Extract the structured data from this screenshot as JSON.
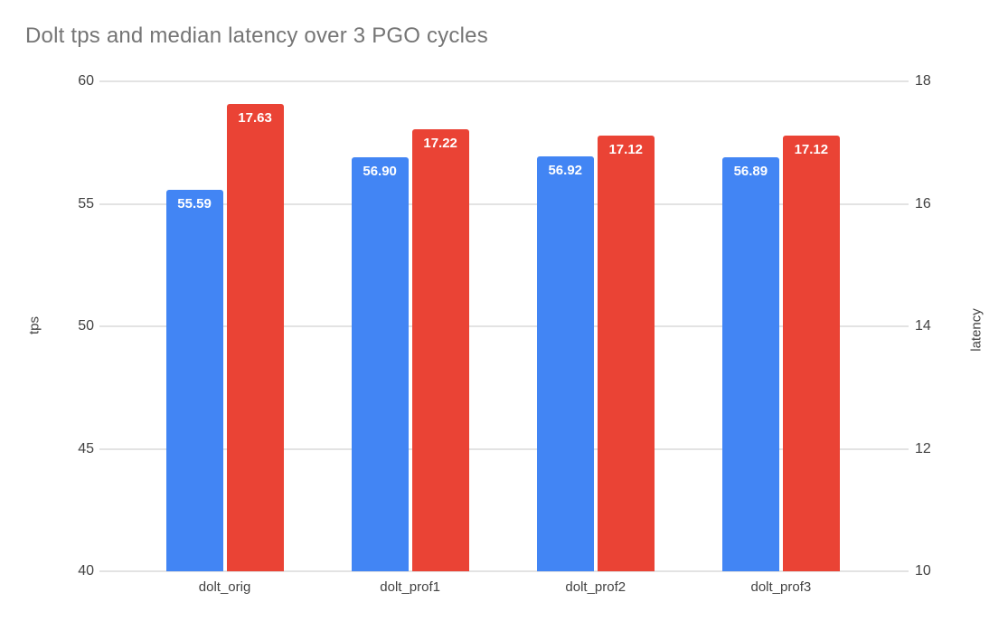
{
  "title": "Dolt tps and median latency over 3 PGO cycles",
  "chart_data": {
    "type": "bar",
    "title": "Dolt tps and median latency over 3 PGO cycles",
    "categories": [
      "dolt_orig",
      "dolt_prof1",
      "dolt_prof2",
      "dolt_prof3"
    ],
    "series": [
      {
        "name": "tps",
        "axis": "left",
        "color": "#4285F4",
        "values": [
          55.59,
          56.9,
          56.92,
          56.89
        ],
        "value_labels": [
          "55.59",
          "56.90",
          "56.92",
          "56.89"
        ]
      },
      {
        "name": "latency",
        "axis": "right",
        "color": "#EA4335",
        "values": [
          17.63,
          17.22,
          17.12,
          17.12
        ],
        "value_labels": [
          "17.63",
          "17.22",
          "17.12",
          "17.12"
        ]
      }
    ],
    "left_axis": {
      "label": "tps",
      "min": 40,
      "max": 60,
      "ticks": [
        60,
        55,
        50,
        45,
        40
      ],
      "tick_labels": [
        "60",
        "55",
        "50",
        "45",
        "40"
      ]
    },
    "right_axis": {
      "label": "latency",
      "min": 10,
      "max": 18,
      "ticks": [
        18,
        16,
        14,
        12,
        10
      ],
      "tick_labels": [
        "18",
        "16",
        "14",
        "12",
        "10"
      ]
    },
    "grid": true,
    "legend": "none",
    "value_labels_shown": true
  },
  "colors": {
    "title_text": "#757575",
    "axis_text": "#424242",
    "gridline": "#e3e3e3",
    "background": "#ffffff",
    "bar_tps": "#4285F4",
    "bar_latency": "#EA4335",
    "value_label_text": "#ffffff"
  }
}
